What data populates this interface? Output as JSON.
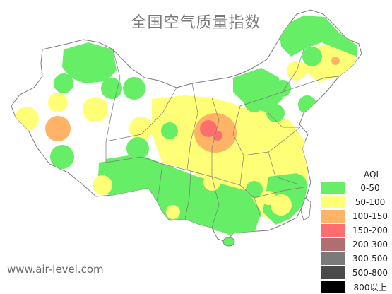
{
  "title": "全国空气质量指数",
  "watermark": "www.air-level.com",
  "legend": {
    "title": "AQI",
    "items": [
      {
        "label": "0-50",
        "color": "#66ee66"
      },
      {
        "label": "50-100",
        "color": "#ffff77"
      },
      {
        "label": "100-150",
        "color": "#ffb366"
      },
      {
        "label": "150-200",
        "color": "#ff6e6e"
      },
      {
        "label": "200-300",
        "color": "#b06e70"
      },
      {
        "label": "300-500",
        "color": "#7a7a7a"
      },
      {
        "label": "500-800",
        "color": "#4a4a4a"
      },
      {
        "label": "800以上",
        "color": "#000000"
      }
    ]
  }
}
